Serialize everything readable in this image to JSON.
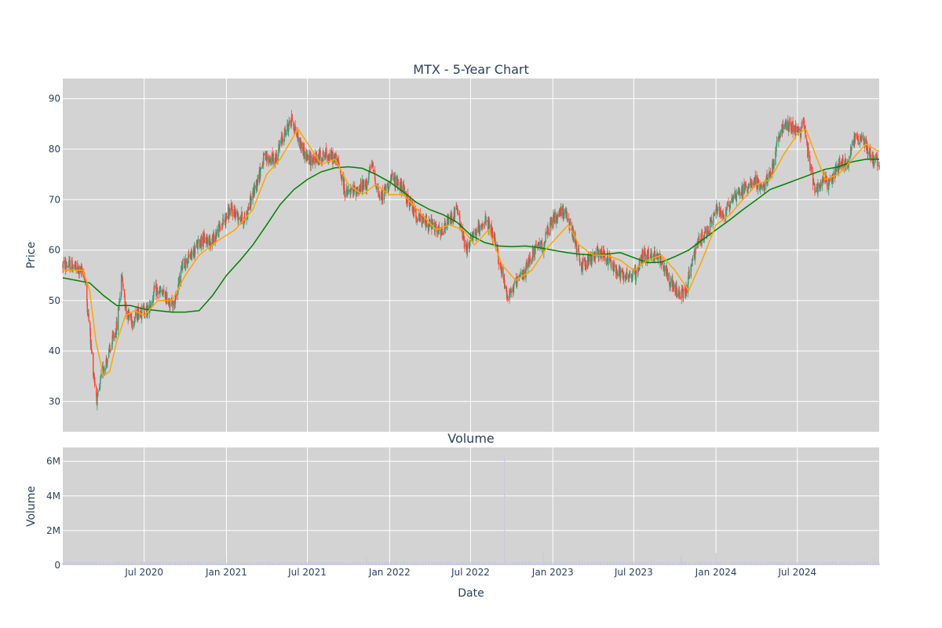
{
  "chart_data": [
    {
      "type": "candlestick",
      "title": "MTX - 5-Year Chart",
      "ylabel": "Price",
      "ylim": [
        24,
        94
      ],
      "yticks": [
        30,
        40,
        50,
        60,
        70,
        80,
        90
      ],
      "xlim": [
        "2020-01-01",
        "2024-12-31"
      ],
      "grid": true,
      "legend": "none",
      "colors": {
        "increasing": "#3d9970",
        "decreasing": "#ff4136",
        "ma_short": "#ffa500",
        "ma_long": "#008000",
        "plot_bg": "#d3d3d3"
      },
      "series": [
        {
          "kind": "ohlc",
          "anchors": [
            [
              "2020-01-01",
              57
            ],
            [
              "2020-01-20",
              57
            ],
            [
              "2020-02-05",
              56
            ],
            [
              "2020-02-18",
              55.5
            ],
            [
              "2020-02-28",
              46
            ],
            [
              "2020-03-08",
              37
            ],
            [
              "2020-03-18",
              30
            ],
            [
              "2020-03-30",
              36
            ],
            [
              "2020-04-15",
              40
            ],
            [
              "2020-05-01",
              45
            ],
            [
              "2020-05-12",
              55
            ],
            [
              "2020-05-22",
              48
            ],
            [
              "2020-06-05",
              46
            ],
            [
              "2020-06-20",
              48
            ],
            [
              "2020-07-10",
              48
            ],
            [
              "2020-07-25",
              52
            ],
            [
              "2020-08-15",
              51
            ],
            [
              "2020-09-05",
              49
            ],
            [
              "2020-09-25",
              57
            ],
            [
              "2020-10-15",
              59
            ],
            [
              "2020-11-05",
              62
            ],
            [
              "2020-12-01",
              62
            ],
            [
              "2021-01-10",
              68
            ],
            [
              "2021-02-10",
              66
            ],
            [
              "2021-03-05",
              72
            ],
            [
              "2021-03-25",
              78
            ],
            [
              "2021-04-20",
              78
            ],
            [
              "2021-05-10",
              83
            ],
            [
              "2021-05-28",
              86
            ],
            [
              "2021-06-10",
              82
            ],
            [
              "2021-07-01",
              78
            ],
            [
              "2021-07-20",
              78
            ],
            [
              "2021-08-10",
              79
            ],
            [
              "2021-09-05",
              78
            ],
            [
              "2021-09-25",
              71
            ],
            [
              "2021-10-20",
              72
            ],
            [
              "2021-11-10",
              73
            ],
            [
              "2021-11-22",
              77
            ],
            [
              "2021-12-10",
              70
            ],
            [
              "2022-01-05",
              74
            ],
            [
              "2022-01-25",
              73
            ],
            [
              "2022-02-15",
              69
            ],
            [
              "2022-03-10",
              66
            ],
            [
              "2022-04-05",
              65
            ],
            [
              "2022-04-25",
              63
            ],
            [
              "2022-05-15",
              66
            ],
            [
              "2022-06-01",
              68
            ],
            [
              "2022-06-20",
              60
            ],
            [
              "2022-07-10",
              63
            ],
            [
              "2022-08-01",
              66
            ],
            [
              "2022-08-20",
              63
            ],
            [
              "2022-09-05",
              57
            ],
            [
              "2022-09-22",
              51
            ],
            [
              "2022-10-10",
              53
            ],
            [
              "2022-11-01",
              56
            ],
            [
              "2022-11-20",
              60
            ],
            [
              "2022-12-10",
              61
            ],
            [
              "2023-01-01",
              66
            ],
            [
              "2023-01-25",
              68
            ],
            [
              "2023-02-15",
              63
            ],
            [
              "2023-03-05",
              57
            ],
            [
              "2023-03-25",
              58
            ],
            [
              "2023-04-15",
              60
            ],
            [
              "2023-05-05",
              58
            ],
            [
              "2023-05-25",
              56
            ],
            [
              "2023-06-15",
              55
            ],
            [
              "2023-07-05",
              55
            ],
            [
              "2023-07-20",
              59
            ],
            [
              "2023-08-15",
              59
            ],
            [
              "2023-09-01",
              58
            ],
            [
              "2023-09-20",
              54
            ],
            [
              "2023-10-10",
              51
            ],
            [
              "2023-10-25",
              52
            ],
            [
              "2023-11-10",
              58
            ],
            [
              "2023-11-25",
              62
            ],
            [
              "2023-12-15",
              64
            ],
            [
              "2024-01-01",
              68
            ],
            [
              "2024-01-20",
              67
            ],
            [
              "2024-02-10",
              71
            ],
            [
              "2024-03-05",
              72
            ],
            [
              "2024-03-25",
              74
            ],
            [
              "2024-04-15",
              72
            ],
            [
              "2024-05-05",
              76
            ],
            [
              "2024-05-25",
              84
            ],
            [
              "2024-06-15",
              85
            ],
            [
              "2024-07-05",
              83
            ],
            [
              "2024-07-15",
              85
            ],
            [
              "2024-07-25",
              79
            ],
            [
              "2024-08-10",
              72
            ],
            [
              "2024-08-25",
              74
            ],
            [
              "2024-09-10",
              73
            ],
            [
              "2024-10-01",
              77
            ],
            [
              "2024-10-20",
              77
            ],
            [
              "2024-11-05",
              82
            ],
            [
              "2024-11-25",
              82
            ],
            [
              "2024-12-10",
              79
            ],
            [
              "2024-12-31",
              77
            ]
          ]
        },
        {
          "kind": "moving_average_short",
          "values": [
            [
              "2020-01-01",
              56
            ],
            [
              "2020-02-15",
              56
            ],
            [
              "2020-03-01",
              52
            ],
            [
              "2020-03-15",
              42
            ],
            [
              "2020-04-01",
              35
            ],
            [
              "2020-04-15",
              36
            ],
            [
              "2020-05-01",
              42
            ],
            [
              "2020-05-20",
              47
            ],
            [
              "2020-06-10",
              48
            ],
            [
              "2020-07-01",
              47
            ],
            [
              "2020-08-01",
              50
            ],
            [
              "2020-09-01",
              50
            ],
            [
              "2020-10-01",
              55
            ],
            [
              "2020-11-01",
              59
            ],
            [
              "2020-12-15",
              62
            ],
            [
              "2021-01-20",
              64
            ],
            [
              "2021-03-01",
              68
            ],
            [
              "2021-04-01",
              75
            ],
            [
              "2021-05-01",
              78
            ],
            [
              "2021-06-10",
              84
            ],
            [
              "2021-07-10",
              80
            ],
            [
              "2021-08-01",
              77
            ],
            [
              "2021-09-01",
              78
            ],
            [
              "2021-10-01",
              73
            ],
            [
              "2021-11-01",
              71
            ],
            [
              "2021-12-01",
              73
            ],
            [
              "2022-01-01",
              71
            ],
            [
              "2022-02-01",
              71
            ],
            [
              "2022-03-15",
              67
            ],
            [
              "2022-04-15",
              64
            ],
            [
              "2022-05-15",
              65
            ],
            [
              "2022-06-15",
              64
            ],
            [
              "2022-07-10",
              61
            ],
            [
              "2022-08-10",
              64
            ],
            [
              "2022-09-10",
              57
            ],
            [
              "2022-10-10",
              54
            ],
            [
              "2022-11-15",
              56
            ],
            [
              "2022-12-15",
              60
            ],
            [
              "2023-01-15",
              63
            ],
            [
              "2023-02-05",
              65
            ],
            [
              "2023-03-01",
              61
            ],
            [
              "2023-04-01",
              59
            ],
            [
              "2023-05-01",
              59
            ],
            [
              "2023-06-01",
              58
            ],
            [
              "2023-07-01",
              56
            ],
            [
              "2023-08-01",
              58
            ],
            [
              "2023-09-01",
              59
            ],
            [
              "2023-10-01",
              56
            ],
            [
              "2023-11-01",
              52
            ],
            [
              "2023-12-01",
              58
            ],
            [
              "2024-01-01",
              65
            ],
            [
              "2024-02-01",
              67
            ],
            [
              "2024-03-01",
              70
            ],
            [
              "2024-04-01",
              73
            ],
            [
              "2024-05-01",
              74
            ],
            [
              "2024-06-01",
              79
            ],
            [
              "2024-07-01",
              83
            ],
            [
              "2024-07-20",
              84
            ],
            [
              "2024-08-10",
              79
            ],
            [
              "2024-09-01",
              74
            ],
            [
              "2024-10-01",
              75
            ],
            [
              "2024-11-01",
              78
            ],
            [
              "2024-12-01",
              81
            ],
            [
              "2024-12-31",
              79.5
            ]
          ]
        },
        {
          "kind": "moving_average_long",
          "values": [
            [
              "2020-01-01",
              54.5
            ],
            [
              "2020-03-01",
              53.5
            ],
            [
              "2020-04-01",
              51
            ],
            [
              "2020-05-01",
              49
            ],
            [
              "2020-06-01",
              49
            ],
            [
              "2020-07-01",
              48.3
            ],
            [
              "2020-08-01",
              48
            ],
            [
              "2020-09-01",
              47.7
            ],
            [
              "2020-10-01",
              47.7
            ],
            [
              "2020-11-01",
              48
            ],
            [
              "2020-12-01",
              51
            ],
            [
              "2021-01-01",
              55
            ],
            [
              "2021-02-01",
              58
            ],
            [
              "2021-03-01",
              61
            ],
            [
              "2021-04-01",
              65
            ],
            [
              "2021-05-01",
              69
            ],
            [
              "2021-06-01",
              72
            ],
            [
              "2021-07-01",
              74
            ],
            [
              "2021-08-01",
              75.5
            ],
            [
              "2021-09-01",
              76.3
            ],
            [
              "2021-10-01",
              76.5
            ],
            [
              "2021-11-01",
              76.2
            ],
            [
              "2021-12-01",
              75
            ],
            [
              "2022-01-01",
              73.5
            ],
            [
              "2022-02-01",
              71.5
            ],
            [
              "2022-03-01",
              69.5
            ],
            [
              "2022-04-01",
              68
            ],
            [
              "2022-05-01",
              67
            ],
            [
              "2022-06-01",
              65.5
            ],
            [
              "2022-07-01",
              63
            ],
            [
              "2022-08-01",
              61.5
            ],
            [
              "2022-09-01",
              60.8
            ],
            [
              "2022-10-01",
              60.7
            ],
            [
              "2022-11-01",
              60.8
            ],
            [
              "2022-12-01",
              60.5
            ],
            [
              "2023-01-01",
              60
            ],
            [
              "2023-02-01",
              59.5
            ],
            [
              "2023-03-01",
              59.2
            ],
            [
              "2023-04-01",
              59
            ],
            [
              "2023-05-01",
              59.2
            ],
            [
              "2023-06-01",
              59.5
            ],
            [
              "2023-07-01",
              58.5
            ],
            [
              "2023-08-01",
              57.5
            ],
            [
              "2023-09-01",
              57.6
            ],
            [
              "2023-10-01",
              58.7
            ],
            [
              "2023-11-01",
              60
            ],
            [
              "2023-12-01",
              62
            ],
            [
              "2024-01-01",
              64
            ],
            [
              "2024-02-01",
              66
            ],
            [
              "2024-03-01",
              68
            ],
            [
              "2024-04-01",
              70
            ],
            [
              "2024-05-01",
              72
            ],
            [
              "2024-06-01",
              73
            ],
            [
              "2024-07-01",
              74
            ],
            [
              "2024-08-01",
              75
            ],
            [
              "2024-09-01",
              76
            ],
            [
              "2024-10-01",
              76.5
            ],
            [
              "2024-11-01",
              77.5
            ],
            [
              "2024-12-01",
              78
            ],
            [
              "2024-12-31",
              78
            ]
          ]
        }
      ]
    },
    {
      "type": "bar",
      "title": "Volume",
      "xlabel": "Date",
      "ylabel": "Volume",
      "ylim": [
        0,
        6800000
      ],
      "yticks": [
        0,
        2000000,
        4000000,
        6000000
      ],
      "ytick_labels": [
        "0",
        "2M",
        "4M",
        "6M"
      ],
      "xticks": [
        "2020-07-01",
        "2021-01-01",
        "2021-07-01",
        "2022-01-01",
        "2022-07-01",
        "2023-01-01",
        "2023-07-01",
        "2024-01-01",
        "2024-07-01"
      ],
      "xtick_labels": [
        "Jul 2020",
        "Jan 2021",
        "Jul 2021",
        "Jan 2022",
        "Jul 2022",
        "Jan 2023",
        "Jul 2023",
        "Jan 2024",
        "Jul 2024"
      ],
      "bar_color": "#c8c8e0",
      "baseline_volume": 150000,
      "spikes": [
        [
          "2022-09-15",
          6300000
        ],
        [
          "2020-12-30",
          550000
        ],
        [
          "2022-12-10",
          700000
        ],
        [
          "2024-01-01",
          700000
        ],
        [
          "2023-10-15",
          550000
        ],
        [
          "2021-11-10",
          420000
        ],
        [
          "2024-12-20",
          450000
        ]
      ]
    }
  ]
}
